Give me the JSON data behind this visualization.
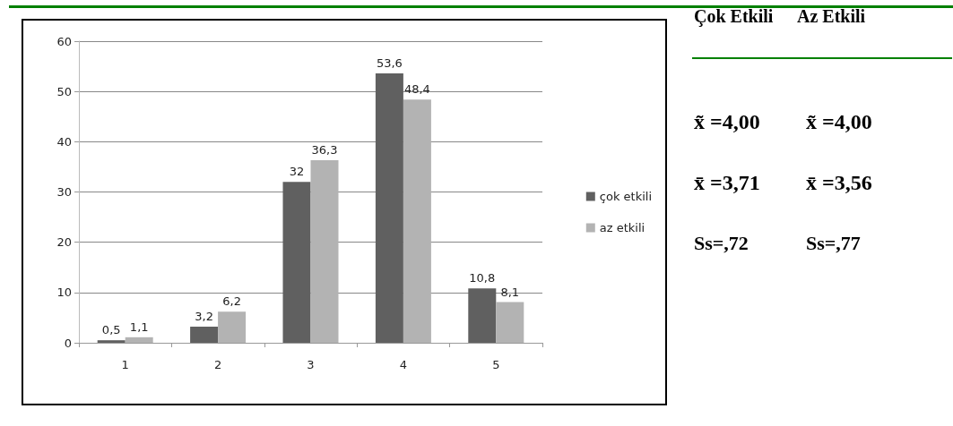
{
  "chart_data": [
    {
      "type": "bar",
      "categories": [
        "1",
        "2",
        "3",
        "4",
        "5"
      ],
      "series": [
        {
          "name": "çok etkili",
          "color": "#606060",
          "values": [
            0.5,
            3.2,
            32,
            53.6,
            10.8
          ],
          "value_labels": [
            "0,5",
            "3,2",
            "32",
            "53,6",
            "10,8"
          ]
        },
        {
          "name": "az etkili",
          "color": "#b3b3b3",
          "values": [
            1.1,
            6.2,
            36.3,
            48.4,
            8.1
          ],
          "value_labels": [
            "1,1",
            "6,2",
            "36,3",
            "48,4",
            "8,1"
          ]
        }
      ],
      "ylim": [
        0,
        60
      ],
      "yticks": [
        0,
        10,
        20,
        30,
        40,
        50,
        60
      ],
      "grid": "y",
      "legend": "right"
    },
    {
      "type": "other",
      "annotations": [
        "Çok Etkili",
        "Az Etkili",
        "x̃ =4,00",
        "x̃ =4,00",
        "x̄ =3,71",
        "x̄ =3,56",
        "Ss=,72",
        "Ss=,77"
      ]
    }
  ]
}
